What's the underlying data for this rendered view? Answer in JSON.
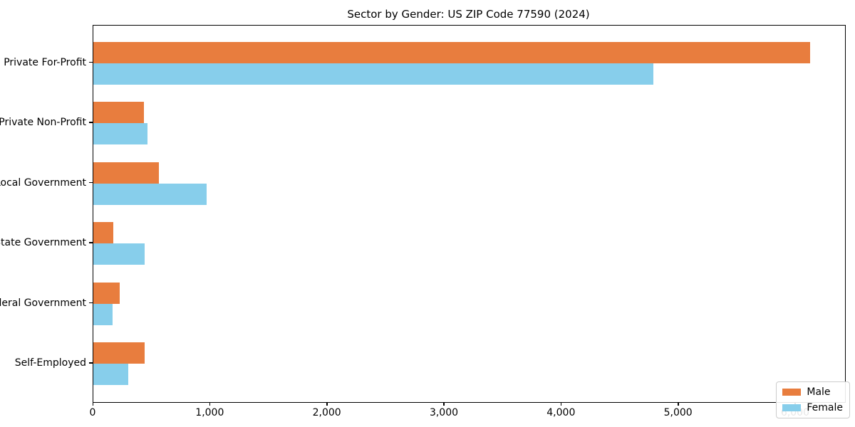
{
  "title": "Sector by Gender: US ZIP Code 77590 (2024)",
  "chart_data": {
    "type": "bar",
    "orientation": "horizontal",
    "title": "Sector by Gender: US ZIP Code 77590 (2024)",
    "categories": [
      "Private For-Profit",
      "Private Non-Profit",
      "Local Government",
      "State Government",
      "Federal Government",
      "Self-Employed"
    ],
    "series": [
      {
        "name": "Male",
        "color": "#e87d3e",
        "values": [
          6122,
          432,
          560,
          170,
          225,
          438
        ]
      },
      {
        "name": "Female",
        "color": "#87ceeb",
        "values": [
          4783,
          462,
          967,
          438,
          164,
          298
        ]
      }
    ],
    "xlabel": "",
    "ylabel": "",
    "xlim": [
      0,
      6420
    ],
    "x_ticks": [
      0,
      1000,
      2000,
      3000,
      4000,
      5000,
      6000
    ],
    "x_tick_labels": [
      "0",
      "1,000",
      "2,000",
      "3,000",
      "4,000",
      "5,000",
      "6,000"
    ],
    "grid": false,
    "legend_position": "lower right",
    "background_color": "#ffffff",
    "spine_color": "#000000"
  },
  "legend": {
    "items": [
      {
        "label": "Male",
        "color": "#e87d3e"
      },
      {
        "label": "Female",
        "color": "#87ceeb"
      }
    ]
  }
}
